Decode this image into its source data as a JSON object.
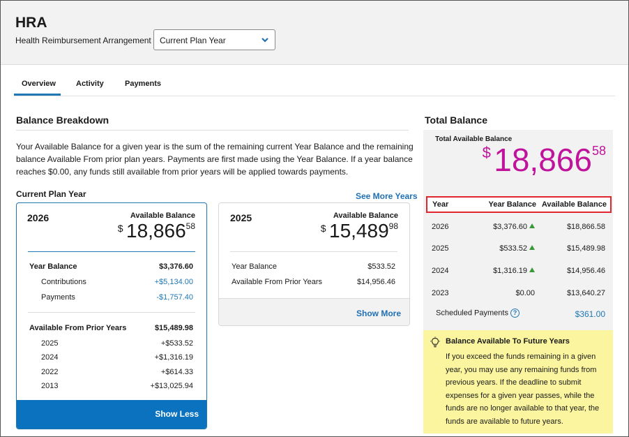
{
  "header": {
    "title": "HRA",
    "subtitle": "Health Reimbursement Arrangement",
    "plan_select": "Current Plan Year"
  },
  "tabs": [
    "Overview",
    "Activity",
    "Payments"
  ],
  "breakdown": {
    "title": "Balance Breakdown",
    "intro": "Your Available Balance for a given year is the sum of the remaining current Year Balance and the remaining balance Available From prior plan years. Payments are first made using the Year Balance. If a year balance reaches $0.00, any funds still available from prior years will be applied towards payments.",
    "current_label": "Current Plan Year",
    "see_more": "See More Years"
  },
  "card2026": {
    "year": "2026",
    "available_label": "Available Balance",
    "currency": "$",
    "whole": "18,866",
    "cents": "58",
    "year_balance_label": "Year Balance",
    "year_balance": "$3,376.60",
    "contributions_label": "Contributions",
    "contributions": "+$5,134.00",
    "payments_label": "Payments",
    "payments": "-$1,757.40",
    "prior_label": "Available From Prior Years",
    "prior_total": "$15,489.98",
    "prior_rows": [
      {
        "year": "2025",
        "amount": "+$533.52"
      },
      {
        "year": "2024",
        "amount": "+$1,316.19"
      },
      {
        "year": "2022",
        "amount": "+$614.33"
      },
      {
        "year": "2013",
        "amount": "+$13,025.94"
      }
    ],
    "show_less": "Show Less"
  },
  "card2025": {
    "year": "2025",
    "available_label": "Available Balance",
    "currency": "$",
    "whole": "15,489",
    "cents": "98",
    "year_balance_label": "Year Balance",
    "year_balance": "$533.52",
    "prior_label": "Available From Prior Years",
    "prior_total": "$14,956.46",
    "show_more": "Show More"
  },
  "total": {
    "title": "Total Balance",
    "available_label": "Total Available Balance",
    "currency": "$",
    "whole": "18,866",
    "cents": "58",
    "table_headers": [
      "Year",
      "Year Balance",
      "Available Balance"
    ],
    "rows": [
      {
        "year": "2026",
        "year_balance": "$3,376.60",
        "available": "$18,866.58",
        "up": true
      },
      {
        "year": "2025",
        "year_balance": "$533.52",
        "available": "$15,489.98",
        "up": true
      },
      {
        "year": "2024",
        "year_balance": "$1,316.19",
        "available": "$14,956.46",
        "up": true
      },
      {
        "year": "2023",
        "year_balance": "$0.00",
        "available": "$13,640.27",
        "up": false
      }
    ],
    "scheduled_label": "Scheduled Payments",
    "scheduled_value": "$361.00",
    "help_glyph": "?"
  },
  "note": {
    "icon": "lightbulb-icon",
    "title": "Balance Available To Future Years",
    "body": "If you exceed the funds remaining in a given year, you may use any remaining funds from previous years. If the deadline to submit expenses for a given year passes, while the funds are no longer available to that year, the funds are available to future years."
  },
  "colors": {
    "accent": "#1f77b4",
    "total_balance": "#c0139b",
    "highlight_border": "#e0262f",
    "note_background": "#fbf59f",
    "up_arrow": "#3a9a3a"
  }
}
